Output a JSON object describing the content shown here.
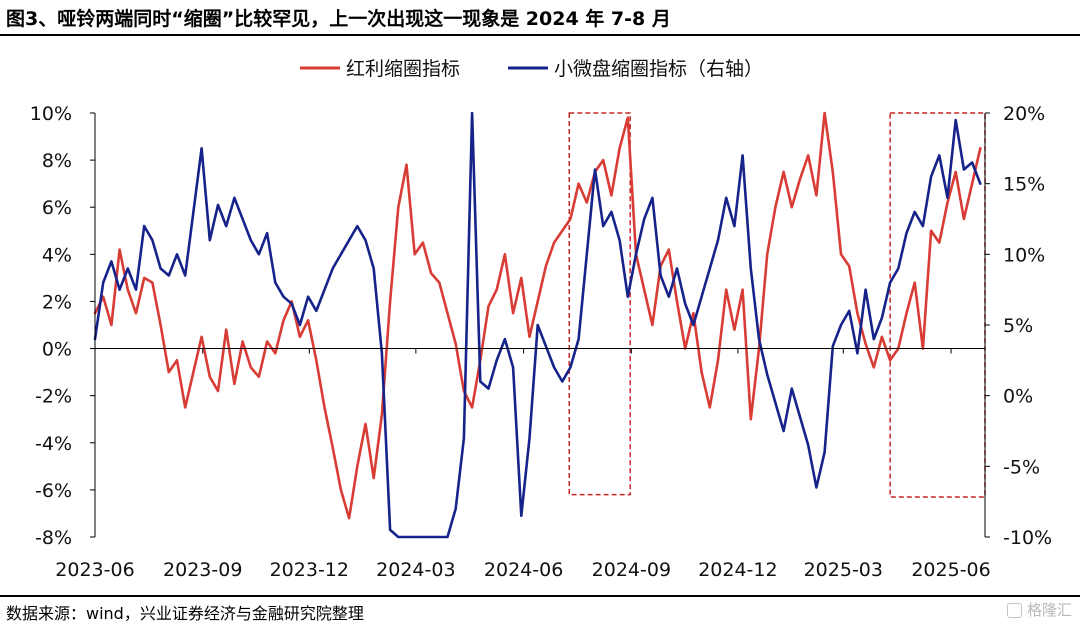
{
  "header": {
    "title": "图3、哑铃两端同时“缩圈”比较罕见，上一次出现这一现象是 2024 年 7-8 月"
  },
  "footer": {
    "source": "数据来源：wind，兴业证券经济与金融研究院整理",
    "watermark": "格隆汇"
  },
  "colors": {
    "red": "#d93b35",
    "blue": "#15238a",
    "highlight": "#c62828"
  },
  "chart_data": {
    "type": "line",
    "title": "",
    "x_ticks": [
      "2023-06",
      "2023-09",
      "2023-12",
      "2024-03",
      "2024-06",
      "2024-09",
      "2024-12",
      "2025-03",
      "2025-06"
    ],
    "y_left": {
      "ticks": [
        "10%",
        "8%",
        "6%",
        "4%",
        "2%",
        "0%",
        "-2%",
        "-4%",
        "-6%",
        "-8%"
      ],
      "range": [
        -8,
        10
      ],
      "unit": "%"
    },
    "y_right": {
      "ticks": [
        "20%",
        "15%",
        "10%",
        "5%",
        "0%",
        "-5%",
        "-10%"
      ],
      "range": [
        -10,
        20
      ],
      "unit": "%"
    },
    "legend_position": "top",
    "highlight_boxes": [
      {
        "label": "2024-07 to 2024-08",
        "x_start": "2024-07-10",
        "x_end": "2024-08-31",
        "y_range_left": [
          -6.2,
          10
        ]
      },
      {
        "label": "2025-04 to 2025-06",
        "x_start": "2025-04-10",
        "x_end": "2025-06-30",
        "y_range_left": [
          -6.3,
          10
        ]
      }
    ],
    "series": [
      {
        "name": "红利缩圈指标",
        "axis": "left",
        "color": "#d93b35",
        "points": [
          [
            "2023-06-01",
            1.5
          ],
          [
            "2023-06-08",
            2.2
          ],
          [
            "2023-06-15",
            1.0
          ],
          [
            "2023-06-22",
            4.2
          ],
          [
            "2023-06-29",
            2.5
          ],
          [
            "2023-07-06",
            1.5
          ],
          [
            "2023-07-13",
            3.0
          ],
          [
            "2023-07-20",
            2.8
          ],
          [
            "2023-07-27",
            1.0
          ],
          [
            "2023-08-03",
            -1.0
          ],
          [
            "2023-08-10",
            -0.5
          ],
          [
            "2023-08-17",
            -2.5
          ],
          [
            "2023-08-24",
            -1.0
          ],
          [
            "2023-08-31",
            0.5
          ],
          [
            "2023-09-07",
            -1.2
          ],
          [
            "2023-09-14",
            -1.8
          ],
          [
            "2023-09-21",
            0.8
          ],
          [
            "2023-09-28",
            -1.5
          ],
          [
            "2023-10-05",
            0.3
          ],
          [
            "2023-10-12",
            -0.8
          ],
          [
            "2023-10-19",
            -1.2
          ],
          [
            "2023-10-26",
            0.3
          ],
          [
            "2023-11-02",
            -0.2
          ],
          [
            "2023-11-09",
            1.2
          ],
          [
            "2023-11-16",
            2.0
          ],
          [
            "2023-11-23",
            0.5
          ],
          [
            "2023-11-30",
            1.2
          ],
          [
            "2023-12-07",
            -0.5
          ],
          [
            "2023-12-14",
            -2.5
          ],
          [
            "2023-12-21",
            -4.2
          ],
          [
            "2023-12-28",
            -6.0
          ],
          [
            "2024-01-04",
            -7.2
          ],
          [
            "2024-01-11",
            -5.0
          ],
          [
            "2024-01-18",
            -3.2
          ],
          [
            "2024-01-25",
            -5.5
          ],
          [
            "2024-02-01",
            -2.8
          ],
          [
            "2024-02-08",
            2.0
          ],
          [
            "2024-02-15",
            6.0
          ],
          [
            "2024-02-22",
            7.8
          ],
          [
            "2024-02-29",
            4.0
          ],
          [
            "2024-03-07",
            4.5
          ],
          [
            "2024-03-14",
            3.2
          ],
          [
            "2024-03-21",
            2.8
          ],
          [
            "2024-03-28",
            1.5
          ],
          [
            "2024-04-04",
            0.2
          ],
          [
            "2024-04-11",
            -1.8
          ],
          [
            "2024-04-18",
            -2.5
          ],
          [
            "2024-04-25",
            -0.5
          ],
          [
            "2024-05-02",
            1.8
          ],
          [
            "2024-05-09",
            2.5
          ],
          [
            "2024-05-16",
            4.0
          ],
          [
            "2024-05-23",
            1.5
          ],
          [
            "2024-05-30",
            3.0
          ],
          [
            "2024-06-06",
            0.5
          ],
          [
            "2024-06-13",
            2.0
          ],
          [
            "2024-06-20",
            3.5
          ],
          [
            "2024-06-27",
            4.5
          ],
          [
            "2024-07-04",
            5.0
          ],
          [
            "2024-07-11",
            5.5
          ],
          [
            "2024-07-18",
            7.0
          ],
          [
            "2024-07-25",
            6.2
          ],
          [
            "2024-08-01",
            7.5
          ],
          [
            "2024-08-08",
            8.0
          ],
          [
            "2024-08-15",
            6.5
          ],
          [
            "2024-08-22",
            8.5
          ],
          [
            "2024-08-29",
            9.8
          ],
          [
            "2024-09-05",
            4.0
          ],
          [
            "2024-09-12",
            2.5
          ],
          [
            "2024-09-19",
            1.0
          ],
          [
            "2024-09-26",
            3.5
          ],
          [
            "2024-10-03",
            4.2
          ],
          [
            "2024-10-10",
            2.0
          ],
          [
            "2024-10-17",
            0.0
          ],
          [
            "2024-10-24",
            1.5
          ],
          [
            "2024-10-31",
            -1.0
          ],
          [
            "2024-11-07",
            -2.5
          ],
          [
            "2024-11-14",
            -0.5
          ],
          [
            "2024-11-21",
            2.5
          ],
          [
            "2024-11-28",
            0.8
          ],
          [
            "2024-12-05",
            2.5
          ],
          [
            "2024-12-12",
            -3.0
          ],
          [
            "2024-12-19",
            0.0
          ],
          [
            "2024-12-26",
            4.0
          ],
          [
            "2025-01-02",
            6.0
          ],
          [
            "2025-01-09",
            7.5
          ],
          [
            "2025-01-16",
            6.0
          ],
          [
            "2025-01-23",
            7.2
          ],
          [
            "2025-01-30",
            8.2
          ],
          [
            "2025-02-06",
            6.5
          ],
          [
            "2025-02-13",
            10.0
          ],
          [
            "2025-02-20",
            7.5
          ],
          [
            "2025-02-27",
            4.0
          ],
          [
            "2025-03-06",
            3.5
          ],
          [
            "2025-03-13",
            1.5
          ],
          [
            "2025-03-20",
            0.2
          ],
          [
            "2025-03-27",
            -0.8
          ],
          [
            "2025-04-03",
            0.5
          ],
          [
            "2025-04-10",
            -0.5
          ],
          [
            "2025-04-17",
            0.0
          ],
          [
            "2025-04-24",
            1.5
          ],
          [
            "2025-05-01",
            2.8
          ],
          [
            "2025-05-08",
            0.0
          ],
          [
            "2025-05-15",
            5.0
          ],
          [
            "2025-05-22",
            4.5
          ],
          [
            "2025-05-29",
            6.2
          ],
          [
            "2025-06-05",
            7.5
          ],
          [
            "2025-06-12",
            5.5
          ],
          [
            "2025-06-19",
            7.0
          ],
          [
            "2025-06-26",
            8.5
          ]
        ]
      },
      {
        "name": "小微盘缩圈指标（右轴）",
        "axis": "right",
        "color": "#15238a",
        "points": [
          [
            "2023-06-01",
            4.0
          ],
          [
            "2023-06-08",
            8.0
          ],
          [
            "2023-06-15",
            9.5
          ],
          [
            "2023-06-22",
            7.5
          ],
          [
            "2023-06-29",
            9.0
          ],
          [
            "2023-07-06",
            7.5
          ],
          [
            "2023-07-13",
            12.0
          ],
          [
            "2023-07-20",
            11.0
          ],
          [
            "2023-07-27",
            9.0
          ],
          [
            "2023-08-03",
            8.5
          ],
          [
            "2023-08-10",
            10.0
          ],
          [
            "2023-08-17",
            8.5
          ],
          [
            "2023-08-24",
            13.0
          ],
          [
            "2023-08-31",
            17.5
          ],
          [
            "2023-09-07",
            11.0
          ],
          [
            "2023-09-14",
            13.5
          ],
          [
            "2023-09-21",
            12.0
          ],
          [
            "2023-09-28",
            14.0
          ],
          [
            "2023-10-05",
            12.5
          ],
          [
            "2023-10-12",
            11.0
          ],
          [
            "2023-10-19",
            10.0
          ],
          [
            "2023-10-26",
            11.5
          ],
          [
            "2023-11-02",
            8.0
          ],
          [
            "2023-11-09",
            7.0
          ],
          [
            "2023-11-16",
            6.5
          ],
          [
            "2023-11-23",
            5.0
          ],
          [
            "2023-11-30",
            7.0
          ],
          [
            "2023-12-07",
            6.0
          ],
          [
            "2023-12-14",
            7.5
          ],
          [
            "2023-12-21",
            9.0
          ],
          [
            "2023-12-28",
            10.0
          ],
          [
            "2024-01-04",
            11.0
          ],
          [
            "2024-01-11",
            12.0
          ],
          [
            "2024-01-18",
            11.0
          ],
          [
            "2024-01-25",
            9.0
          ],
          [
            "2024-02-01",
            3.0
          ],
          [
            "2024-02-08",
            -9.5
          ],
          [
            "2024-02-15",
            -12.0
          ],
          [
            "2024-03-07",
            -12.0
          ],
          [
            "2024-03-28",
            -12.0
          ],
          [
            "2024-04-04",
            -8.0
          ],
          [
            "2024-04-11",
            -3.0
          ],
          [
            "2024-04-18",
            20.0
          ],
          [
            "2024-04-25",
            1.0
          ],
          [
            "2024-05-02",
            0.5
          ],
          [
            "2024-05-09",
            2.5
          ],
          [
            "2024-05-16",
            4.0
          ],
          [
            "2024-05-23",
            2.0
          ],
          [
            "2024-05-30",
            -8.5
          ],
          [
            "2024-06-06",
            -3.0
          ],
          [
            "2024-06-13",
            5.0
          ],
          [
            "2024-06-20",
            3.5
          ],
          [
            "2024-06-27",
            2.0
          ],
          [
            "2024-07-04",
            1.0
          ],
          [
            "2024-07-11",
            2.0
          ],
          [
            "2024-07-18",
            4.0
          ],
          [
            "2024-07-25",
            10.0
          ],
          [
            "2024-08-01",
            16.0
          ],
          [
            "2024-08-08",
            12.0
          ],
          [
            "2024-08-15",
            13.0
          ],
          [
            "2024-08-22",
            11.0
          ],
          [
            "2024-08-29",
            7.0
          ],
          [
            "2024-09-05",
            10.0
          ],
          [
            "2024-09-12",
            12.5
          ],
          [
            "2024-09-19",
            14.0
          ],
          [
            "2024-09-26",
            8.5
          ],
          [
            "2024-10-03",
            7.0
          ],
          [
            "2024-10-10",
            9.0
          ],
          [
            "2024-10-17",
            6.5
          ],
          [
            "2024-10-24",
            5.0
          ],
          [
            "2024-10-31",
            7.0
          ],
          [
            "2024-11-07",
            9.0
          ],
          [
            "2024-11-14",
            11.0
          ],
          [
            "2024-11-21",
            14.0
          ],
          [
            "2024-11-28",
            12.0
          ],
          [
            "2024-12-05",
            17.0
          ],
          [
            "2024-12-12",
            9.0
          ],
          [
            "2024-12-19",
            4.0
          ],
          [
            "2024-12-26",
            1.5
          ],
          [
            "2025-01-02",
            -0.5
          ],
          [
            "2025-01-09",
            -2.5
          ],
          [
            "2025-01-16",
            0.5
          ],
          [
            "2025-01-23",
            -1.5
          ],
          [
            "2025-01-30",
            -3.5
          ],
          [
            "2025-02-06",
            -6.5
          ],
          [
            "2025-02-13",
            -4.0
          ],
          [
            "2025-02-20",
            3.5
          ],
          [
            "2025-02-27",
            5.0
          ],
          [
            "2025-03-06",
            6.0
          ],
          [
            "2025-03-13",
            3.0
          ],
          [
            "2025-03-20",
            7.5
          ],
          [
            "2025-03-27",
            4.0
          ],
          [
            "2025-04-03",
            5.5
          ],
          [
            "2025-04-10",
            8.0
          ],
          [
            "2025-04-17",
            9.0
          ],
          [
            "2025-04-24",
            11.5
          ],
          [
            "2025-05-01",
            13.0
          ],
          [
            "2025-05-08",
            12.0
          ],
          [
            "2025-05-15",
            15.5
          ],
          [
            "2025-05-22",
            17.0
          ],
          [
            "2025-05-29",
            14.0
          ],
          [
            "2025-06-05",
            19.5
          ],
          [
            "2025-06-12",
            16.0
          ],
          [
            "2025-06-19",
            16.5
          ],
          [
            "2025-06-26",
            15.0
          ]
        ]
      }
    ]
  }
}
